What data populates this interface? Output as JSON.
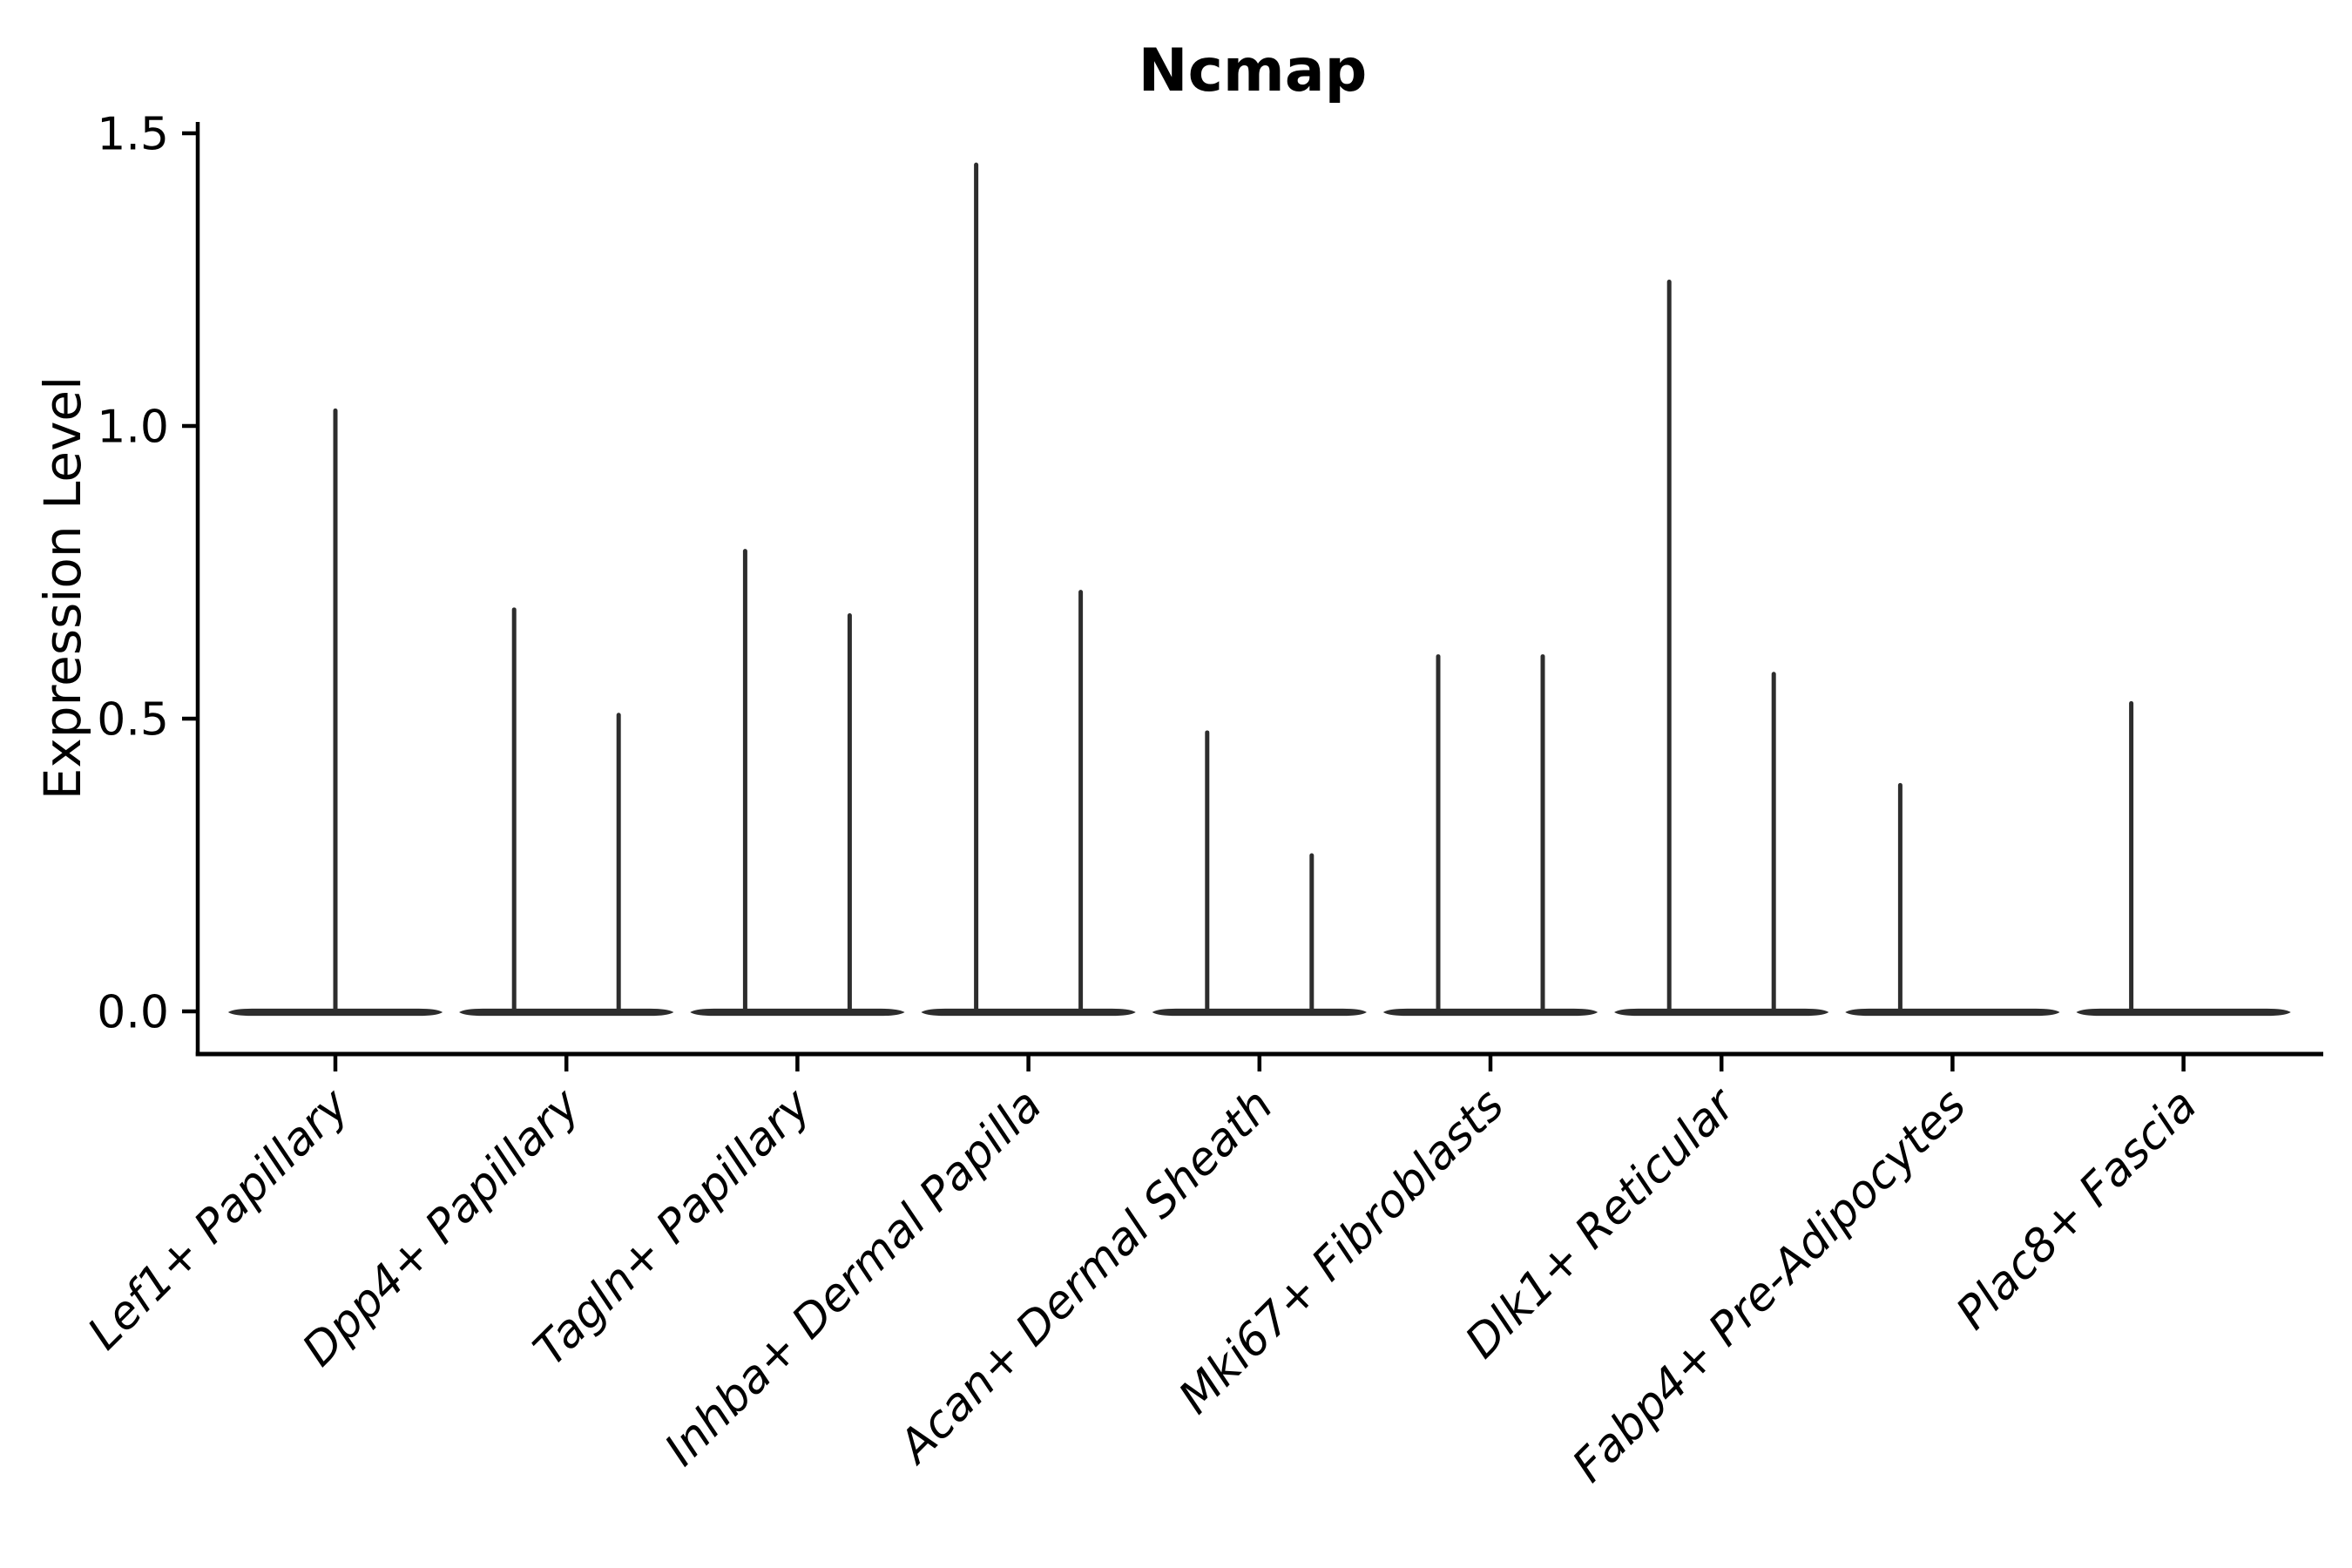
{
  "chart_data": {
    "type": "violin",
    "title": "Ncmap",
    "ylabel": "Expression Level",
    "xlabel": "",
    "background_color": "#ffffff",
    "axis_color": "#000000",
    "violin_color": "#2d2d2d",
    "grid": false,
    "legend": false,
    "ylim": [
      0,
      1.5
    ],
    "yticks": [
      {
        "value": 0.0,
        "label": "0.0"
      },
      {
        "value": 0.5,
        "label": "0.5"
      },
      {
        "value": 1.0,
        "label": "1.0"
      },
      {
        "value": 1.5,
        "label": "1.5"
      }
    ],
    "categories": [
      {
        "label": "Lef1+ Papillary",
        "violins": [
          {
            "position": "center",
            "max": 1.03
          }
        ]
      },
      {
        "label": "Dpp4+ Papillary",
        "violins": [
          {
            "position": "left",
            "max": 0.69
          },
          {
            "position": "right",
            "max": 0.51
          }
        ]
      },
      {
        "label": "Tagln+ Papillary",
        "violins": [
          {
            "position": "left",
            "max": 0.79
          },
          {
            "position": "right",
            "max": 0.68
          }
        ]
      },
      {
        "label": "Inhba+ Dermal Papilla",
        "violins": [
          {
            "position": "left",
            "max": 1.45
          },
          {
            "position": "right",
            "max": 0.72
          }
        ]
      },
      {
        "label": "Acan+ Dermal Sheath",
        "violins": [
          {
            "position": "left",
            "max": 0.48
          },
          {
            "position": "right",
            "max": 0.27
          }
        ]
      },
      {
        "label": "Mki67+ Fibroblasts",
        "violins": [
          {
            "position": "left",
            "max": 0.61
          },
          {
            "position": "right",
            "max": 0.61
          }
        ]
      },
      {
        "label": "Dlk1+ Reticular",
        "violins": [
          {
            "position": "left",
            "max": 1.25
          },
          {
            "position": "right",
            "max": 0.58
          }
        ]
      },
      {
        "label": "Fabp4+ Pre-Adipocytes",
        "violins": [
          {
            "position": "left",
            "max": 0.39
          }
        ]
      },
      {
        "label": "Plac8+ Fascia",
        "violins": [
          {
            "position": "left",
            "max": 0.53
          }
        ]
      }
    ]
  }
}
